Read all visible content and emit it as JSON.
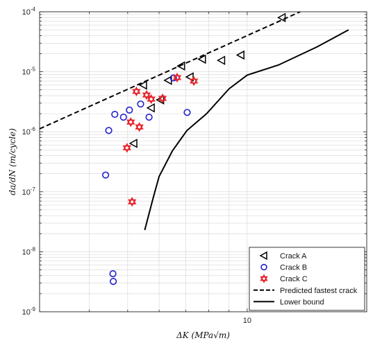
{
  "chart_data": {
    "type": "scatter",
    "scale": {
      "x": "log",
      "y": "log"
    },
    "xlim": [
      3.0,
      20.0
    ],
    "ylim": [
      1e-09,
      0.0001
    ],
    "grid": true,
    "legend_position": "bottom-right",
    "xlabel": "ΔK (MPa√m)",
    "ylabel": "da/dN (m/cycle)",
    "x_ticks": [
      {
        "value": 10,
        "label": "10"
      }
    ],
    "y_ticks": [
      {
        "value": 1e-09,
        "mantissa": "10",
        "exp": "-9"
      },
      {
        "value": 1e-08,
        "mantissa": "10",
        "exp": "-8"
      },
      {
        "value": 1e-07,
        "mantissa": "10",
        "exp": "-7"
      },
      {
        "value": 1e-06,
        "mantissa": "10",
        "exp": "-6"
      },
      {
        "value": 1e-05,
        "mantissa": "10",
        "exp": "-5"
      },
      {
        "value": 0.0001,
        "mantissa": "10",
        "exp": "-4"
      }
    ],
    "series": [
      {
        "name": "Crack A",
        "kind": "scatter",
        "marker": "triangle-left",
        "color": "#000000",
        "x": [
          5.18,
          5.48,
          5.73,
          6.05,
          6.33,
          6.83,
          7.18,
          7.71,
          8.62,
          9.64,
          12.24
        ],
        "y": [
          6.4e-07,
          6e-06,
          2.5e-06,
          3.4e-06,
          7.2e-06,
          1.25e-05,
          8.2e-06,
          1.62e-05,
          1.55e-05,
          1.9e-05,
          8e-05
        ]
      },
      {
        "name": "Crack B",
        "kind": "scatter",
        "marker": "circle",
        "color": "#1f1fd1",
        "x": [
          4.4,
          4.48,
          4.59,
          4.6,
          4.64,
          4.88,
          5.05,
          5.39,
          5.66,
          6.52,
          7.06
        ],
        "y": [
          1.9e-07,
          1.05e-06,
          4.3e-09,
          3.2e-09,
          1.95e-06,
          1.75e-06,
          2.3e-06,
          2.9e-06,
          1.75e-06,
          7.9e-06,
          2.1e-06
        ]
      },
      {
        "name": "Crack C",
        "kind": "scatter",
        "marker": "hexagram",
        "color": "#e8232a",
        "x": [
          4.98,
          5.09,
          5.13,
          5.26,
          5.35,
          5.58,
          5.73,
          6.12,
          6.66,
          7.34
        ],
        "y": [
          5.4e-07,
          1.45e-06,
          6.8e-08,
          4.7e-06,
          1.2e-06,
          4.1e-06,
          3.5e-06,
          3.6e-06,
          8e-06,
          7e-06
        ]
      },
      {
        "name": "Predicted fastest crack",
        "kind": "line",
        "dash": "dashed",
        "color": "#000000",
        "x": [
          3.0,
          13.6
        ],
        "y": [
          1.12e-06,
          0.0001
        ]
      },
      {
        "name": "Lower bound",
        "kind": "line",
        "dash": "solid",
        "color": "#000000",
        "x": [
          5.52,
          5.8,
          6.0,
          6.48,
          7.05,
          7.9,
          9.0,
          10.0,
          12.0,
          15.0,
          18.0
        ],
        "y": [
          2.3e-08,
          8e-08,
          1.8e-07,
          4.8e-07,
          1.05e-06,
          2e-06,
          5.2e-06,
          8.8e-06,
          1.3e-05,
          2.6e-05,
          5e-05
        ]
      }
    ]
  }
}
